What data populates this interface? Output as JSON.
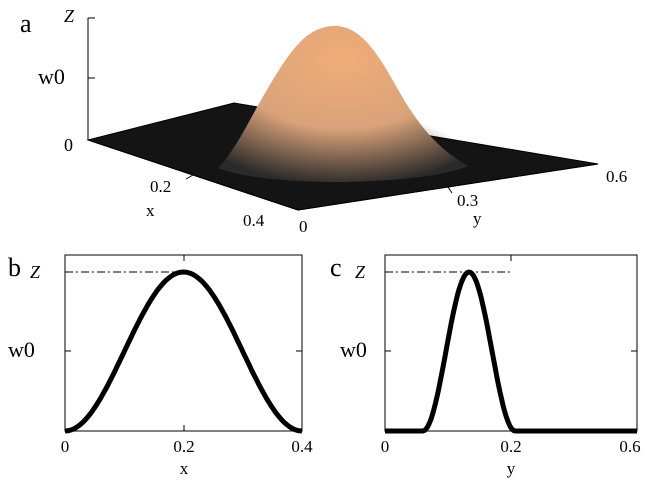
{
  "panels": {
    "a": {
      "label": "a",
      "z_ticks": [
        "Z",
        "w0",
        "0"
      ],
      "x_axis": {
        "label": "x",
        "ticks": [
          "0.2",
          "0.4"
        ]
      },
      "y_axis": {
        "label": "y",
        "ticks": [
          "0",
          "0.3",
          "0.6"
        ]
      }
    },
    "b": {
      "label": "b",
      "y_ticks": [
        "Z",
        "w0"
      ],
      "x_axis": {
        "label": "x",
        "ticks": [
          "0",
          "0.2",
          "0.4"
        ],
        "range": [
          0,
          0.4
        ]
      }
    },
    "c": {
      "label": "c",
      "y_ticks": [
        "Z",
        "w0"
      ],
      "x_axis": {
        "label": "y",
        "ticks": [
          "0",
          "0.2",
          "0.6"
        ],
        "range": [
          0,
          0.6
        ]
      }
    }
  },
  "profiles": {
    "b": {
      "peak_x": 0.2,
      "support": [
        0,
        0.4
      ]
    },
    "c": {
      "peak_x": 0.2,
      "support": [
        0.09,
        0.31
      ]
    }
  },
  "colors": {
    "surface_peak": "#f0ad78",
    "surface_base": "#111111",
    "curve": "#000000"
  }
}
